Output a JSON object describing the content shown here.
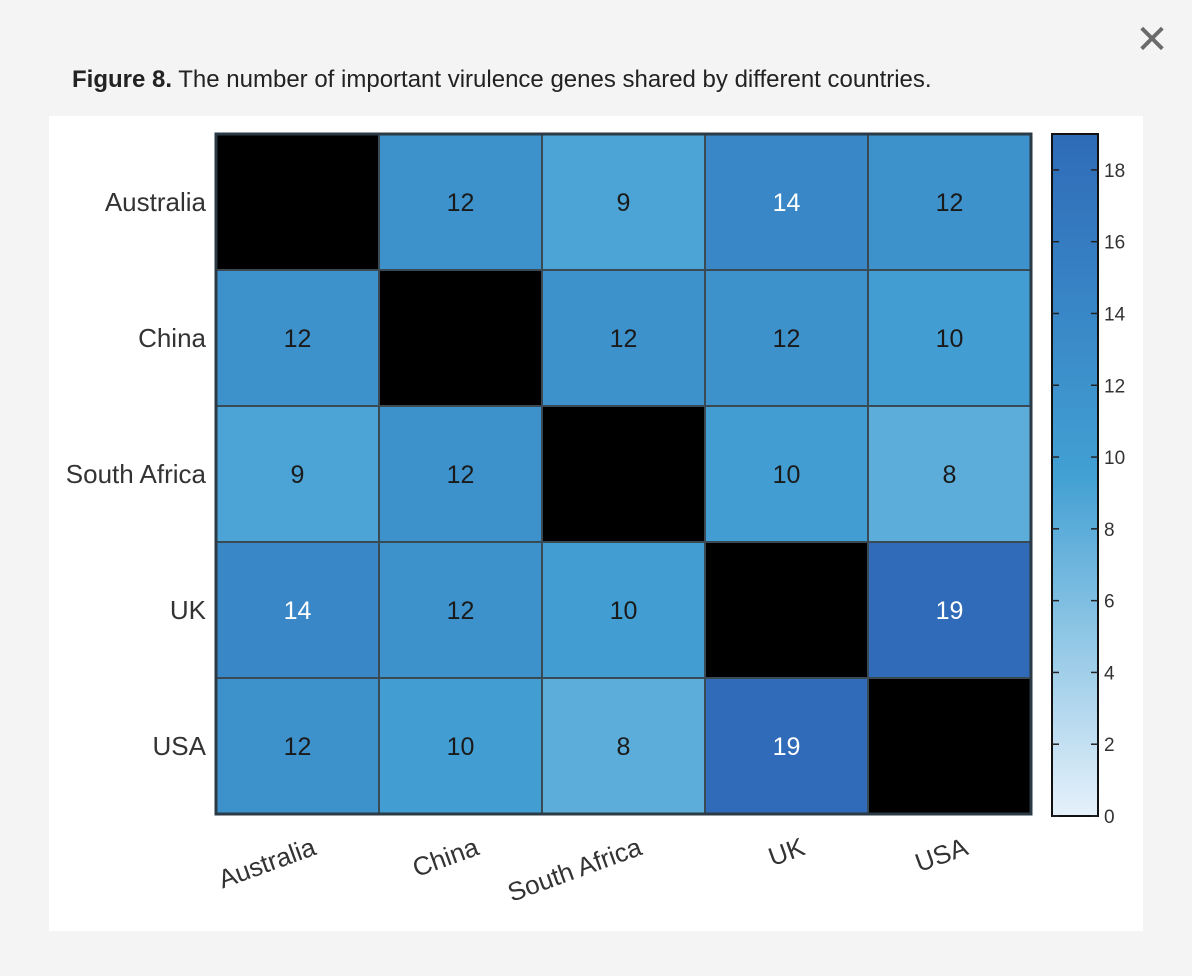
{
  "dialog": {
    "close_icon": "close-icon",
    "close_glyph": "✕"
  },
  "caption": {
    "label": "Figure 8.",
    "text": " The number of important virulence genes shared by different countries."
  },
  "chart_data": {
    "type": "heatmap",
    "title": "The number of important virulence genes shared by different countries.",
    "rows": [
      "Australia",
      "China",
      "South Africa",
      "UK",
      "USA"
    ],
    "columns": [
      "Australia",
      "China",
      "South Africa",
      "UK",
      "USA"
    ],
    "values": [
      [
        null,
        12,
        9,
        14,
        12
      ],
      [
        12,
        null,
        12,
        12,
        10
      ],
      [
        9,
        12,
        null,
        10,
        8
      ],
      [
        14,
        12,
        10,
        null,
        19
      ],
      [
        12,
        10,
        8,
        19,
        null
      ]
    ],
    "diagonal_color": "#000000",
    "colorbar": {
      "min": 0,
      "max": 19,
      "ticks": [
        0,
        2,
        4,
        6,
        8,
        10,
        12,
        14,
        16,
        18
      ],
      "color_low": "#e6f1fa",
      "color_mid": "#42a0d3",
      "color_high": "#2f6bb8"
    },
    "xlabel": "",
    "ylabel": ""
  }
}
